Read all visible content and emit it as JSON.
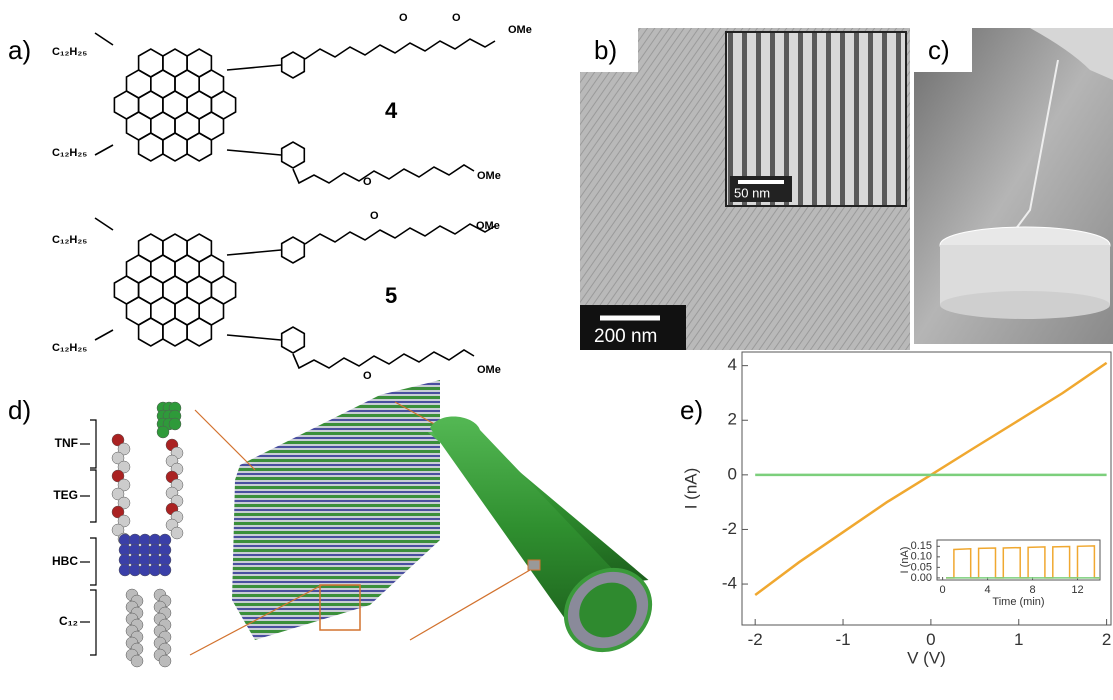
{
  "panels": {
    "a": "a)",
    "b": "b)",
    "c": "c)",
    "d": "d)",
    "e": "e)"
  },
  "structures": {
    "compound_4": "4",
    "compound_5": "5",
    "alkyl": "C₁₂H₂₅",
    "end_group": "OMe",
    "oxygen": "O"
  },
  "micrograph": {
    "scale_bar": "200 nm",
    "inset_scale_bar": "50 nm"
  },
  "model": {
    "labels": [
      "TNF",
      "TEG",
      "HBC",
      "C₁₂"
    ]
  },
  "chart_data": [
    {
      "type": "line",
      "xlabel": "V (V)",
      "ylabel": "I (nA)",
      "x": [
        -2,
        -1.5,
        -1,
        -0.5,
        0,
        0.5,
        1,
        1.5,
        2
      ],
      "series": [
        {
          "color": "#f0a830",
          "values": [
            -4.4,
            -3.2,
            -2.1,
            -1.0,
            0,
            1.0,
            2.0,
            3.0,
            4.1
          ]
        },
        {
          "color": "#7ccf7c",
          "values": [
            0,
            0,
            0,
            0,
            0,
            0,
            0,
            0,
            0
          ]
        }
      ],
      "xlim": [
        -2.15,
        2.05
      ],
      "ylim": [
        -5.5,
        4.5
      ],
      "xticks": [
        -2,
        -1,
        0,
        1,
        2
      ],
      "yticks": [
        -4,
        -2,
        0,
        2,
        4
      ]
    },
    {
      "type": "line",
      "xlabel": "Time (min)",
      "ylabel": "I (nA)",
      "x": [
        0.3,
        1,
        1,
        2.5,
        2.5,
        3.2,
        3.2,
        4.7,
        4.7,
        5.4,
        5.4,
        6.9,
        6.9,
        7.6,
        7.6,
        9.1,
        9.1,
        9.8,
        9.8,
        11.3,
        11.3,
        12,
        12,
        13.5,
        13.5,
        14
      ],
      "series": [
        {
          "color": "#f0a830",
          "values": [
            0,
            0,
            0.135,
            0.138,
            0,
            0,
            0.14,
            0.142,
            0,
            0,
            0.142,
            0.144,
            0,
            0,
            0.145,
            0.147,
            0,
            0,
            0.147,
            0.149,
            0,
            0,
            0.15,
            0.152,
            0,
            0
          ]
        },
        {
          "color": "#7ccf7c",
          "values": [
            0,
            0,
            0,
            0,
            0,
            0,
            0,
            0,
            0,
            0,
            0,
            0,
            0,
            0,
            0,
            0,
            0,
            0,
            0,
            0,
            0,
            0,
            0,
            0,
            0,
            0
          ]
        }
      ],
      "xlim": [
        -0.5,
        14
      ],
      "ylim": [
        -0.01,
        0.18
      ],
      "xticks": [
        0,
        4,
        8,
        12
      ],
      "yticks": [
        {
          "value": 0,
          "label": "0.00"
        },
        {
          "value": 0.05,
          "label": "0.05"
        },
        {
          "value": 0.1,
          "label": "0.10"
        },
        {
          "value": 0.15,
          "label": "0.15"
        }
      ]
    }
  ]
}
